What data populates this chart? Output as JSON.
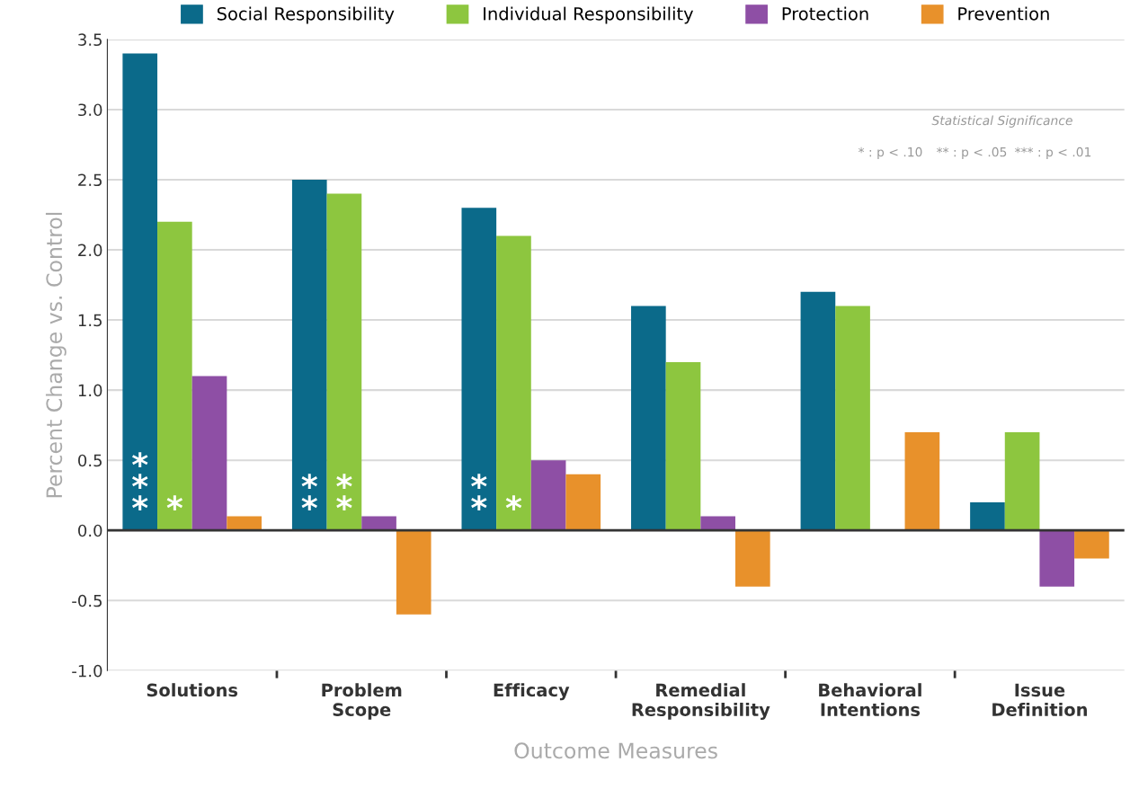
{
  "chart_data": {
    "type": "bar",
    "xlabel": "Outcome Measures",
    "ylabel": "Percent Change vs. Control",
    "categories": [
      "Solutions",
      "Problem\nScope",
      "Efficacy",
      "Remedial\nResponsibility",
      "Behavioral\nIntentions",
      "Issue\nDefinition"
    ],
    "series": [
      {
        "name": "Social Responsibility",
        "color": "#0b6a8a",
        "values": [
          3.4,
          2.5,
          2.3,
          1.6,
          1.7,
          0.2
        ]
      },
      {
        "name": "Individual Responsibility",
        "color": "#8dc63f",
        "values": [
          2.2,
          2.4,
          2.1,
          1.2,
          1.6,
          0.7
        ]
      },
      {
        "name": "Protection",
        "color": "#8e4fa5",
        "values": [
          1.1,
          0.1,
          0.5,
          0.1,
          null,
          -0.4
        ]
      },
      {
        "name": "Prevention",
        "color": "#e8912b",
        "values": [
          0.1,
          -0.6,
          0.4,
          -0.4,
          0.7,
          -0.2
        ]
      }
    ],
    "ylim": [
      -1,
      3.5
    ],
    "yticks": [
      {
        "value": -1,
        "label": "-1.0"
      },
      {
        "value": -0.5,
        "label": "-0.5"
      },
      {
        "value": 0,
        "label": "0.0"
      },
      {
        "value": 0.5,
        "label": "0.5"
      },
      {
        "value": 1,
        "label": "1.0"
      },
      {
        "value": 1.5,
        "label": "1.5"
      },
      {
        "value": 2,
        "label": "2.0"
      },
      {
        "value": 2.5,
        "label": "2.5"
      },
      {
        "value": 3,
        "label": "3.0"
      },
      {
        "value": 3.5,
        "label": "3.5"
      }
    ],
    "grid": "y",
    "legend": "top",
    "annotations": [
      "*\n*\n*",
      "*",
      "*\n*",
      "*\n*",
      "*\n*",
      "*",
      "Statistical Significance",
      "* : p < .10",
      "** : p < .05",
      "*** : p < .01"
    ]
  }
}
